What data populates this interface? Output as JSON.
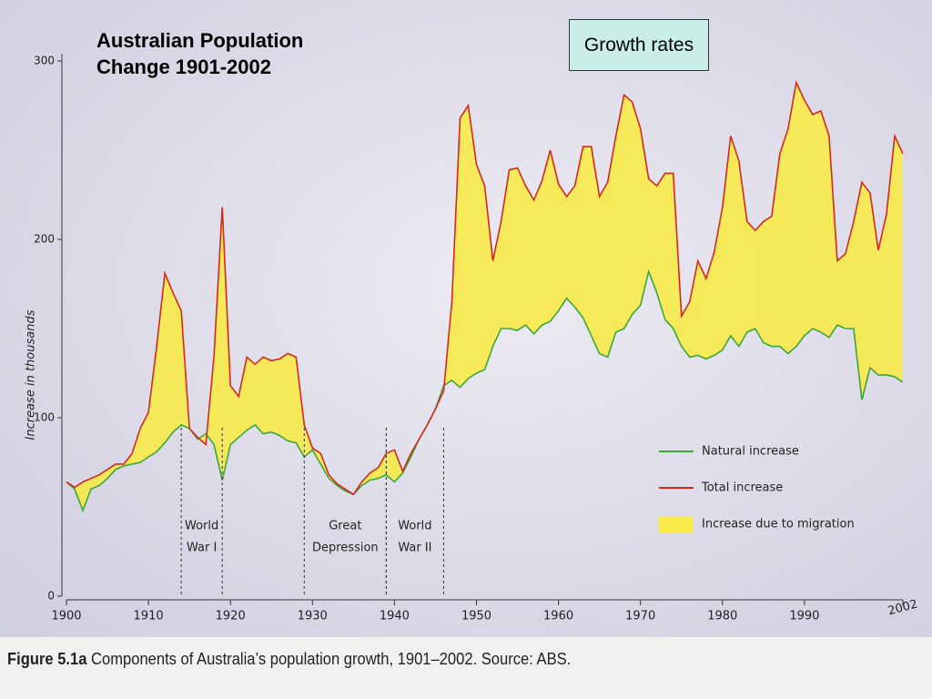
{
  "chart_data": {
    "type": "line",
    "title": "Australian Population Change 1901-2002",
    "badge": "Growth rates",
    "y_label": "Increase in thousands",
    "caption": {
      "label": "Figure 5.1a",
      "text": "Components of Australia’s population growth, 1901–2002. Source: ABS."
    },
    "x": [
      1900,
      1901,
      1902,
      1903,
      1904,
      1905,
      1906,
      1907,
      1908,
      1909,
      1910,
      1911,
      1912,
      1913,
      1914,
      1915,
      1916,
      1917,
      1918,
      1919,
      1920,
      1921,
      1922,
      1923,
      1924,
      1925,
      1926,
      1927,
      1928,
      1929,
      1930,
      1931,
      1932,
      1933,
      1934,
      1935,
      1936,
      1937,
      1938,
      1939,
      1940,
      1941,
      1942,
      1943,
      1944,
      1945,
      1946,
      1947,
      1948,
      1949,
      1950,
      1951,
      1952,
      1953,
      1954,
      1955,
      1956,
      1957,
      1958,
      1959,
      1960,
      1961,
      1962,
      1963,
      1964,
      1965,
      1966,
      1967,
      1968,
      1969,
      1970,
      1971,
      1972,
      1973,
      1974,
      1975,
      1976,
      1977,
      1978,
      1979,
      1980,
      1981,
      1982,
      1983,
      1984,
      1985,
      1986,
      1987,
      1988,
      1989,
      1990,
      1991,
      1992,
      1993,
      1994,
      1995,
      1996,
      1997,
      1998,
      1999,
      2000,
      2001,
      2002
    ],
    "series": [
      {
        "name": "Natural increase",
        "color": "#3aa83a",
        "values": [
          64,
          60,
          48,
          60,
          62,
          66,
          71,
          73,
          74,
          75,
          78,
          81,
          86,
          92,
          96,
          94,
          88,
          91,
          85,
          65,
          85,
          89,
          93,
          96,
          91,
          92,
          90,
          87,
          86,
          78,
          82,
          74,
          66,
          62,
          59,
          57,
          62,
          65,
          66,
          68,
          64,
          69,
          78,
          88,
          96,
          105,
          118,
          121,
          117,
          122,
          125,
          127,
          140,
          150,
          150,
          149,
          152,
          147,
          152,
          154,
          160,
          167,
          162,
          156,
          146,
          136,
          134,
          148,
          150,
          158,
          163,
          182,
          170,
          155,
          150,
          140,
          134,
          135,
          133,
          135,
          138,
          146,
          140,
          148,
          150,
          142,
          140,
          140,
          136,
          140,
          146,
          150,
          148,
          145,
          152,
          150,
          150,
          110,
          128,
          124,
          124,
          123,
          120
        ]
      },
      {
        "name": "Total increase",
        "color": "#d42a1c",
        "values": [
          64,
          61,
          64,
          66,
          68,
          71,
          74,
          74,
          80,
          94,
          103,
          140,
          181,
          170,
          160,
          94,
          89,
          85,
          135,
          218,
          118,
          112,
          134,
          130,
          134,
          132,
          133,
          136,
          134,
          96,
          83,
          80,
          68,
          63,
          60,
          57,
          64,
          69,
          72,
          80,
          82,
          70,
          80,
          88,
          96,
          105,
          115,
          165,
          268,
          275,
          242,
          230,
          188,
          210,
          239,
          240,
          230,
          222,
          233,
          250,
          231,
          224,
          230,
          252,
          252,
          224,
          232,
          258,
          281,
          277,
          262,
          234,
          230,
          237,
          237,
          157,
          165,
          188,
          178,
          193,
          218,
          258,
          244,
          210,
          205,
          210,
          213,
          248,
          262,
          288,
          278,
          270,
          272,
          258,
          188,
          192,
          210,
          232,
          226,
          194,
          214,
          258,
          248
        ]
      }
    ],
    "area": {
      "name": "Increase due to migration",
      "color": "#f7ea4a"
    },
    "xlim": [
      1900,
      2002
    ],
    "xticks": [
      1900,
      1910,
      1920,
      1930,
      1940,
      1950,
      1960,
      1970,
      1980,
      1990,
      2002
    ],
    "ylim": [
      0,
      300
    ],
    "yticks": [
      0,
      100,
      200,
      300
    ],
    "annotations": [
      {
        "lines": [
          "World",
          "War I"
        ],
        "x_range": [
          1914,
          1919
        ]
      },
      {
        "lines": [
          "Great",
          "Depression"
        ],
        "x_range": [
          1929,
          1939
        ]
      },
      {
        "lines": [
          "World",
          "War II"
        ],
        "x_range": [
          1939,
          1946
        ]
      }
    ]
  }
}
